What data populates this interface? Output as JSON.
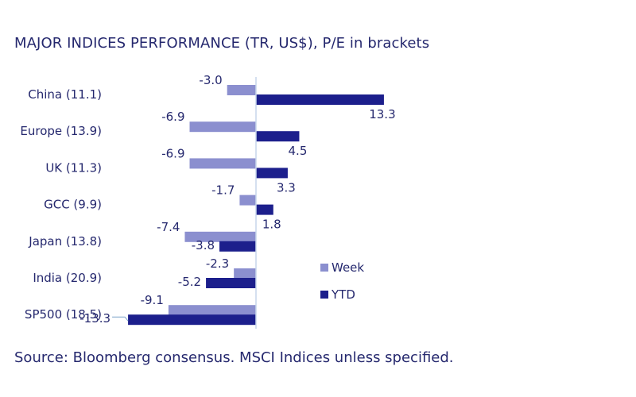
{
  "title": "MAJOR INDICES PERFORMANCE (TR, US$), P/E in brackets",
  "source": "Source: Bloomberg consensus. MSCI Indices unless specified.",
  "chart_data": {
    "type": "bar",
    "orientation": "horizontal",
    "categories": [
      "China (11.1)",
      "Europe (13.9)",
      "UK (11.3)",
      "GCC (9.9)",
      "Japan (13.8)",
      "India (20.9)",
      "SP500 (18.5)"
    ],
    "series": [
      {
        "name": "Week",
        "values": [
          -3.0,
          -6.9,
          -6.9,
          -1.7,
          -7.4,
          -2.3,
          -9.1
        ],
        "color": "#8b8fcf"
      },
      {
        "name": "YTD",
        "values": [
          13.3,
          4.5,
          3.3,
          1.8,
          -3.8,
          -5.2,
          -13.3
        ],
        "color": "#1c1f8c"
      }
    ],
    "axis_color": "#c7d6ec",
    "label_color": "#25286e",
    "legend_position": "right",
    "grid": false
  }
}
